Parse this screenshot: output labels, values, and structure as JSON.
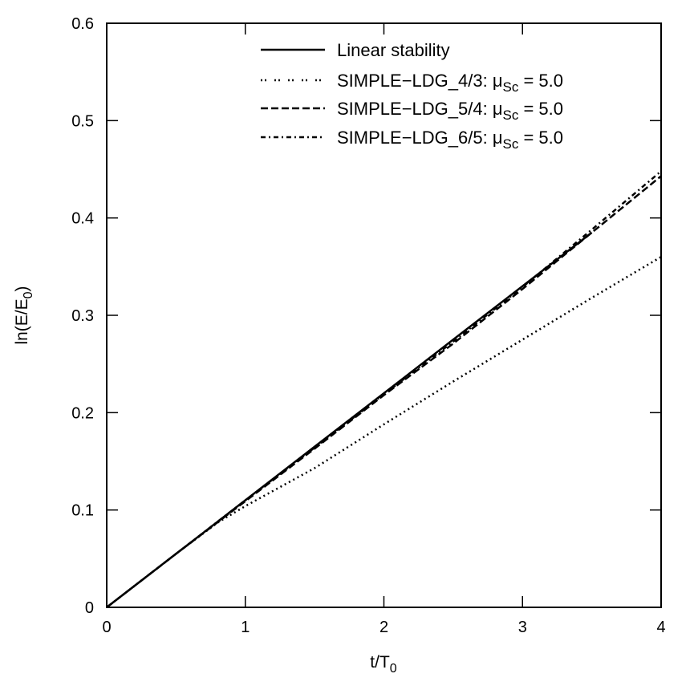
{
  "chart_data": {
    "type": "line",
    "title": "",
    "xlabel": "t/T0",
    "ylabel": "ln(E/E0)",
    "xlim": [
      0,
      4
    ],
    "ylim": [
      0,
      0.6
    ],
    "xticks": [
      "0",
      "1",
      "2",
      "3",
      "4"
    ],
    "yticks": [
      "0",
      "0.1",
      "0.2",
      "0.3",
      "0.4",
      "0.5",
      "0.6"
    ],
    "grid": false,
    "legend_position": "upper center",
    "series": [
      {
        "name": "Linear stability",
        "style": "solid",
        "x": [
          0,
          0.5,
          1,
          1.5,
          2,
          2.5,
          3,
          3.5
        ],
        "y": [
          0,
          0.055,
          0.11,
          0.165,
          0.22,
          0.275,
          0.33,
          0.385
        ]
      },
      {
        "name": "SIMPLE-LDG_4/3: μSc = 5.0",
        "style": "dotted",
        "x": [
          0,
          0.5,
          0.8,
          1,
          1.5,
          2,
          2.5,
          3,
          3.5,
          4
        ],
        "y": [
          0,
          0.055,
          0.087,
          0.104,
          0.143,
          0.188,
          0.232,
          0.275,
          0.318,
          0.36
        ]
      },
      {
        "name": "SIMPLE-LDG_5/4: μSc = 5.0",
        "style": "dashed",
        "x": [
          0,
          0.5,
          1,
          1.5,
          2,
          2.5,
          3,
          3.5,
          4
        ],
        "y": [
          0,
          0.055,
          0.109,
          0.163,
          0.218,
          0.271,
          0.327,
          0.385,
          0.443
        ]
      },
      {
        "name": "SIMPLE-LDG_6/5: μSc = 5.0",
        "style": "dashdot",
        "x": [
          0,
          0.5,
          1,
          1.5,
          2,
          2.5,
          3,
          3.5,
          4
        ],
        "y": [
          0,
          0.055,
          0.11,
          0.164,
          0.219,
          0.273,
          0.329,
          0.388,
          0.448
        ]
      }
    ]
  },
  "legend": {
    "items": [
      {
        "label": "Linear stability"
      },
      {
        "prefix": "SIMPLE−LDG_4/3: μ",
        "sub": "Sc",
        "suffix": " = 5.0"
      },
      {
        "prefix": "SIMPLE−LDG_5/4: μ",
        "sub": "Sc",
        "suffix": " = 5.0"
      },
      {
        "prefix": "SIMPLE−LDG_6/5: μ",
        "sub": "Sc",
        "suffix": " = 5.0"
      }
    ]
  },
  "axes": {
    "xlabel_main": "t/T",
    "xlabel_sub": "0",
    "ylabel_main": "ln(E/E",
    "ylabel_sub": "0",
    "ylabel_end": ")"
  }
}
